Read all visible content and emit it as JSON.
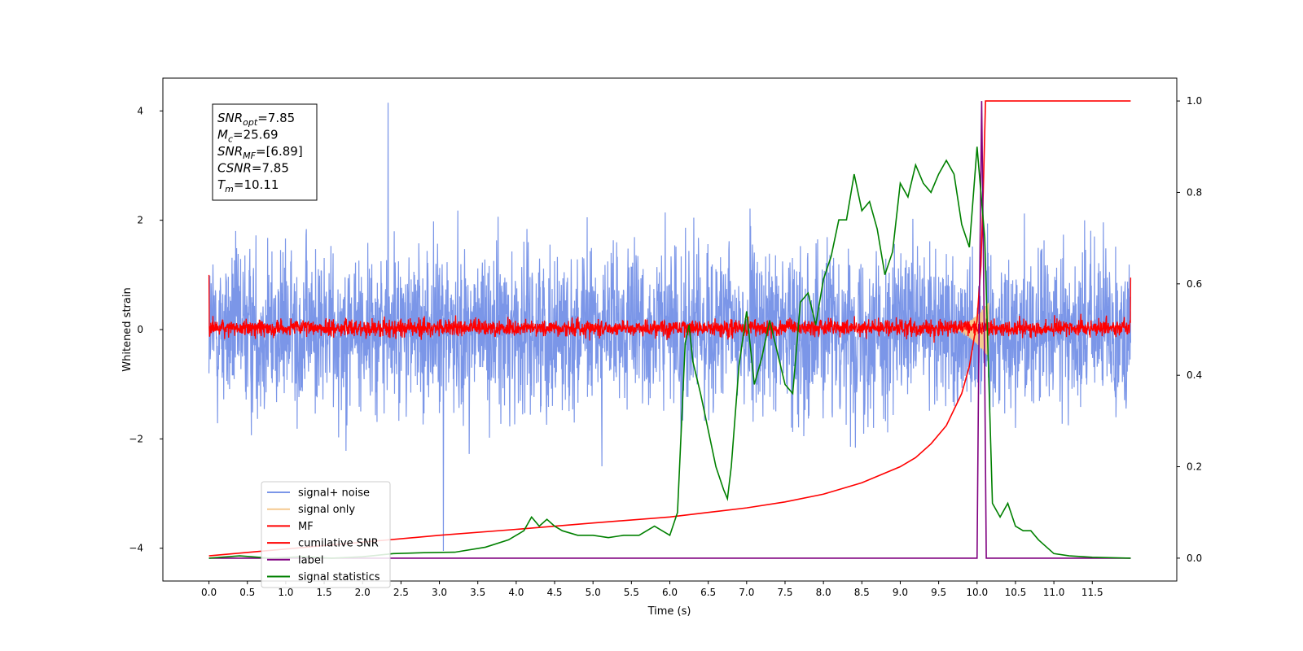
{
  "chart_data": {
    "type": "line",
    "title": "",
    "xlabel": "Time (s)",
    "ylabel": "Whitened strain",
    "xlim": [
      -0.6,
      12.6
    ],
    "ylim": [
      -4.6,
      4.6
    ],
    "y2lim": [
      -0.05,
      1.05
    ],
    "x_ticks": [
      "0.0",
      "0.5",
      "1.0",
      "1.5",
      "2.0",
      "2.5",
      "3.0",
      "3.5",
      "4.0",
      "4.5",
      "5.0",
      "5.5",
      "6.0",
      "6.5",
      "7.0",
      "7.5",
      "8.0",
      "8.5",
      "9.0",
      "9.5",
      "10.0",
      "10.5",
      "11.0",
      "11.5"
    ],
    "y_ticks": [
      "−4",
      "−2",
      "0",
      "2",
      "4"
    ],
    "y2_ticks": [
      "0.0",
      "0.2",
      "0.4",
      "0.6",
      "0.8",
      "1.0"
    ],
    "grid": false,
    "legend_position": "lower-left",
    "stats_box": {
      "lines": [
        {
          "name": "SNR",
          "sub": "opt",
          "value": "=7.85"
        },
        {
          "name": "M",
          "sub": "c",
          "value": "=25.69"
        },
        {
          "name": "SNR",
          "sub": "MF",
          "value": "=[6.89]"
        },
        {
          "name": "CSNR",
          "sub": "",
          "value": "=7.85"
        },
        {
          "name": "T",
          "sub": "m",
          "value": "=10.11"
        }
      ]
    },
    "series": [
      {
        "name": "signal+ noise",
        "axis": "left",
        "color": "#7b96e8",
        "x_range": [
          0.0,
          12.0
        ],
        "envelope": [
          -2.5,
          2.5
        ],
        "note_peaks": [
          4.15,
          -4.05
        ]
      },
      {
        "name": "signal only",
        "axis": "left",
        "color": "#f5c98f",
        "x_range": [
          9.7,
          10.15
        ],
        "peak_amplitude": 0.5
      },
      {
        "name": "MF",
        "axis": "left",
        "color": "#ff0000",
        "x_range": [
          0.0,
          12.0
        ],
        "envelope": [
          -0.25,
          0.35
        ]
      },
      {
        "name": "cumilative SNR",
        "axis": "right",
        "color": "#ff0000",
        "x": [
          0.0,
          1.0,
          2.0,
          3.0,
          4.0,
          5.0,
          6.0,
          6.5,
          7.0,
          7.5,
          8.0,
          8.5,
          9.0,
          9.2,
          9.4,
          9.6,
          9.8,
          9.9,
          10.0,
          10.05,
          10.08,
          10.11,
          12.0
        ],
        "values": [
          0.005,
          0.02,
          0.035,
          0.05,
          0.063,
          0.077,
          0.09,
          0.1,
          0.11,
          0.123,
          0.14,
          0.165,
          0.2,
          0.22,
          0.25,
          0.29,
          0.36,
          0.42,
          0.52,
          0.64,
          0.8,
          1.0,
          1.0
        ]
      },
      {
        "name": "label",
        "axis": "right",
        "color": "#800080",
        "x": [
          0.0,
          10.0,
          10.02,
          10.06,
          10.1,
          10.12,
          12.0
        ],
        "values": [
          0.0,
          0.0,
          0.4,
          1.0,
          0.4,
          0.0,
          0.0
        ]
      },
      {
        "name": "signal statistics",
        "axis": "right",
        "color": "#008000",
        "x": [
          0.0,
          0.4,
          0.8,
          1.2,
          1.6,
          2.0,
          2.4,
          2.8,
          3.2,
          3.6,
          3.9,
          4.0,
          4.1,
          4.2,
          4.3,
          4.4,
          4.5,
          4.6,
          4.8,
          5.0,
          5.2,
          5.4,
          5.6,
          5.8,
          6.0,
          6.1,
          6.2,
          6.25,
          6.3,
          6.4,
          6.5,
          6.6,
          6.7,
          6.75,
          6.8,
          6.9,
          7.0,
          7.1,
          7.2,
          7.3,
          7.4,
          7.5,
          7.6,
          7.7,
          7.8,
          7.9,
          8.0,
          8.1,
          8.2,
          8.3,
          8.4,
          8.5,
          8.6,
          8.7,
          8.8,
          8.9,
          9.0,
          9.1,
          9.2,
          9.3,
          9.4,
          9.5,
          9.6,
          9.7,
          9.8,
          9.9,
          10.0,
          10.1,
          10.2,
          10.3,
          10.4,
          10.5,
          10.6,
          10.7,
          10.8,
          11.0,
          11.2,
          11.5,
          12.0
        ],
        "values": [
          0.0,
          0.005,
          0.0,
          0.003,
          0.0,
          0.003,
          0.01,
          0.012,
          0.013,
          0.024,
          0.04,
          0.05,
          0.06,
          0.09,
          0.07,
          0.085,
          0.07,
          0.06,
          0.05,
          0.05,
          0.045,
          0.05,
          0.05,
          0.07,
          0.05,
          0.1,
          0.47,
          0.51,
          0.43,
          0.36,
          0.28,
          0.2,
          0.15,
          0.13,
          0.2,
          0.42,
          0.54,
          0.38,
          0.44,
          0.52,
          0.45,
          0.38,
          0.36,
          0.56,
          0.58,
          0.51,
          0.61,
          0.66,
          0.74,
          0.74,
          0.84,
          0.76,
          0.78,
          0.72,
          0.62,
          0.67,
          0.82,
          0.79,
          0.86,
          0.82,
          0.8,
          0.84,
          0.87,
          0.84,
          0.73,
          0.68,
          0.9,
          0.7,
          0.12,
          0.09,
          0.12,
          0.07,
          0.06,
          0.06,
          0.04,
          0.01,
          0.005,
          0.002,
          0.0
        ]
      }
    ]
  }
}
